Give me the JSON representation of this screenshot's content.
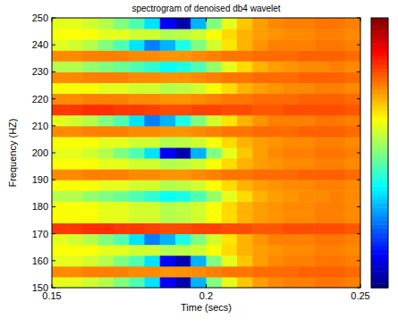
{
  "chart_data": {
    "type": "heatmap",
    "title": "spectrogram of denoised db4 wavelet",
    "x_label": "Time (secs)",
    "y_label": "Frequency (HZ)",
    "xlim": [
      0.15,
      0.25
    ],
    "xticks": [
      0.15,
      0.2,
      0.25
    ],
    "ylim": [
      150,
      250
    ],
    "yticks": [
      150,
      160,
      170,
      180,
      190,
      200,
      210,
      220,
      230,
      240,
      250
    ],
    "grid": false,
    "x": [
      0.1525,
      0.1575,
      0.1625,
      0.1675,
      0.1725,
      0.1775,
      0.1825,
      0.1875,
      0.1925,
      0.1975,
      0.2025,
      0.2075,
      0.2125,
      0.2175,
      0.2225,
      0.2275,
      0.2325,
      0.2375,
      0.2425,
      0.2475
    ],
    "y": [
      152,
      156,
      160,
      164,
      168,
      172,
      176,
      180,
      184,
      188,
      192,
      196,
      200,
      204,
      208,
      212,
      216,
      220,
      224,
      228,
      232,
      236,
      240,
      244,
      248
    ],
    "colorbar_range": [
      0,
      1
    ],
    "cells": [
      [
        0.6,
        0.6,
        0.58,
        0.55,
        0.5,
        0.45,
        0.35,
        0.12,
        0.05,
        0.3,
        0.5,
        0.6,
        0.68,
        0.72,
        0.74,
        0.75,
        0.75,
        0.76,
        0.76,
        0.75
      ],
      [
        0.74,
        0.74,
        0.75,
        0.75,
        0.75,
        0.74,
        0.74,
        0.73,
        0.73,
        0.74,
        0.75,
        0.76,
        0.76,
        0.77,
        0.77,
        0.77,
        0.78,
        0.78,
        0.78,
        0.77
      ],
      [
        0.6,
        0.6,
        0.58,
        0.55,
        0.5,
        0.45,
        0.35,
        0.12,
        0.05,
        0.3,
        0.5,
        0.6,
        0.68,
        0.72,
        0.74,
        0.75,
        0.75,
        0.76,
        0.76,
        0.75
      ],
      [
        0.62,
        0.62,
        0.62,
        0.6,
        0.6,
        0.58,
        0.58,
        0.55,
        0.56,
        0.58,
        0.62,
        0.66,
        0.7,
        0.72,
        0.73,
        0.74,
        0.74,
        0.75,
        0.75,
        0.74
      ],
      [
        0.6,
        0.58,
        0.55,
        0.5,
        0.45,
        0.35,
        0.25,
        0.3,
        0.4,
        0.5,
        0.58,
        0.65,
        0.7,
        0.73,
        0.75,
        0.75,
        0.75,
        0.76,
        0.76,
        0.75
      ],
      [
        0.82,
        0.82,
        0.83,
        0.83,
        0.82,
        0.82,
        0.81,
        0.8,
        0.8,
        0.81,
        0.81,
        0.8,
        0.8,
        0.79,
        0.79,
        0.8,
        0.8,
        0.8,
        0.8,
        0.79
      ],
      [
        0.62,
        0.62,
        0.62,
        0.6,
        0.6,
        0.58,
        0.58,
        0.55,
        0.56,
        0.58,
        0.62,
        0.66,
        0.7,
        0.72,
        0.73,
        0.74,
        0.74,
        0.75,
        0.75,
        0.74
      ],
      [
        0.62,
        0.62,
        0.62,
        0.6,
        0.6,
        0.58,
        0.58,
        0.55,
        0.56,
        0.58,
        0.62,
        0.66,
        0.7,
        0.72,
        0.73,
        0.74,
        0.74,
        0.75,
        0.75,
        0.74
      ],
      [
        0.55,
        0.55,
        0.52,
        0.5,
        0.48,
        0.45,
        0.42,
        0.38,
        0.4,
        0.45,
        0.52,
        0.6,
        0.66,
        0.7,
        0.72,
        0.73,
        0.74,
        0.74,
        0.75,
        0.74
      ],
      [
        0.62,
        0.62,
        0.62,
        0.6,
        0.6,
        0.58,
        0.58,
        0.55,
        0.56,
        0.58,
        0.62,
        0.66,
        0.7,
        0.72,
        0.73,
        0.74,
        0.74,
        0.75,
        0.75,
        0.74
      ],
      [
        0.74,
        0.74,
        0.75,
        0.75,
        0.75,
        0.74,
        0.74,
        0.73,
        0.73,
        0.74,
        0.75,
        0.76,
        0.76,
        0.77,
        0.77,
        0.77,
        0.78,
        0.78,
        0.78,
        0.77
      ],
      [
        0.62,
        0.62,
        0.62,
        0.6,
        0.6,
        0.58,
        0.58,
        0.55,
        0.56,
        0.58,
        0.62,
        0.66,
        0.7,
        0.72,
        0.73,
        0.74,
        0.74,
        0.75,
        0.75,
        0.74
      ],
      [
        0.6,
        0.6,
        0.58,
        0.55,
        0.5,
        0.45,
        0.35,
        0.12,
        0.05,
        0.3,
        0.5,
        0.6,
        0.68,
        0.72,
        0.74,
        0.75,
        0.75,
        0.76,
        0.76,
        0.75
      ],
      [
        0.62,
        0.62,
        0.62,
        0.6,
        0.6,
        0.58,
        0.58,
        0.55,
        0.56,
        0.58,
        0.62,
        0.66,
        0.7,
        0.72,
        0.73,
        0.74,
        0.74,
        0.75,
        0.75,
        0.74
      ],
      [
        0.74,
        0.74,
        0.75,
        0.75,
        0.75,
        0.74,
        0.74,
        0.73,
        0.73,
        0.74,
        0.75,
        0.76,
        0.76,
        0.77,
        0.77,
        0.77,
        0.78,
        0.78,
        0.78,
        0.77
      ],
      [
        0.6,
        0.58,
        0.55,
        0.5,
        0.45,
        0.35,
        0.25,
        0.3,
        0.4,
        0.5,
        0.58,
        0.65,
        0.7,
        0.73,
        0.75,
        0.75,
        0.75,
        0.76,
        0.76,
        0.75
      ],
      [
        0.82,
        0.82,
        0.83,
        0.83,
        0.82,
        0.82,
        0.81,
        0.8,
        0.8,
        0.81,
        0.81,
        0.8,
        0.8,
        0.79,
        0.79,
        0.8,
        0.8,
        0.8,
        0.8,
        0.79
      ],
      [
        0.74,
        0.74,
        0.75,
        0.75,
        0.75,
        0.74,
        0.74,
        0.73,
        0.73,
        0.74,
        0.75,
        0.76,
        0.76,
        0.77,
        0.77,
        0.77,
        0.78,
        0.78,
        0.78,
        0.77
      ],
      [
        0.62,
        0.62,
        0.62,
        0.6,
        0.6,
        0.58,
        0.58,
        0.55,
        0.56,
        0.58,
        0.62,
        0.66,
        0.7,
        0.72,
        0.73,
        0.74,
        0.74,
        0.75,
        0.75,
        0.74
      ],
      [
        0.74,
        0.74,
        0.75,
        0.75,
        0.75,
        0.74,
        0.74,
        0.73,
        0.73,
        0.74,
        0.75,
        0.76,
        0.76,
        0.77,
        0.77,
        0.77,
        0.78,
        0.78,
        0.78,
        0.77
      ],
      [
        0.55,
        0.55,
        0.52,
        0.5,
        0.48,
        0.45,
        0.42,
        0.38,
        0.4,
        0.45,
        0.52,
        0.6,
        0.66,
        0.7,
        0.72,
        0.73,
        0.74,
        0.74,
        0.75,
        0.74
      ],
      [
        0.74,
        0.74,
        0.75,
        0.75,
        0.75,
        0.74,
        0.74,
        0.73,
        0.73,
        0.74,
        0.75,
        0.76,
        0.76,
        0.77,
        0.77,
        0.77,
        0.78,
        0.78,
        0.78,
        0.77
      ],
      [
        0.6,
        0.58,
        0.55,
        0.5,
        0.45,
        0.35,
        0.25,
        0.3,
        0.4,
        0.5,
        0.58,
        0.65,
        0.7,
        0.73,
        0.75,
        0.75,
        0.75,
        0.76,
        0.76,
        0.75
      ],
      [
        0.62,
        0.62,
        0.62,
        0.6,
        0.6,
        0.58,
        0.58,
        0.55,
        0.56,
        0.58,
        0.62,
        0.66,
        0.7,
        0.72,
        0.73,
        0.74,
        0.74,
        0.75,
        0.75,
        0.74
      ],
      [
        0.6,
        0.6,
        0.58,
        0.55,
        0.5,
        0.45,
        0.35,
        0.12,
        0.05,
        0.3,
        0.5,
        0.6,
        0.68,
        0.72,
        0.74,
        0.75,
        0.75,
        0.76,
        0.76,
        0.75
      ]
    ]
  }
}
